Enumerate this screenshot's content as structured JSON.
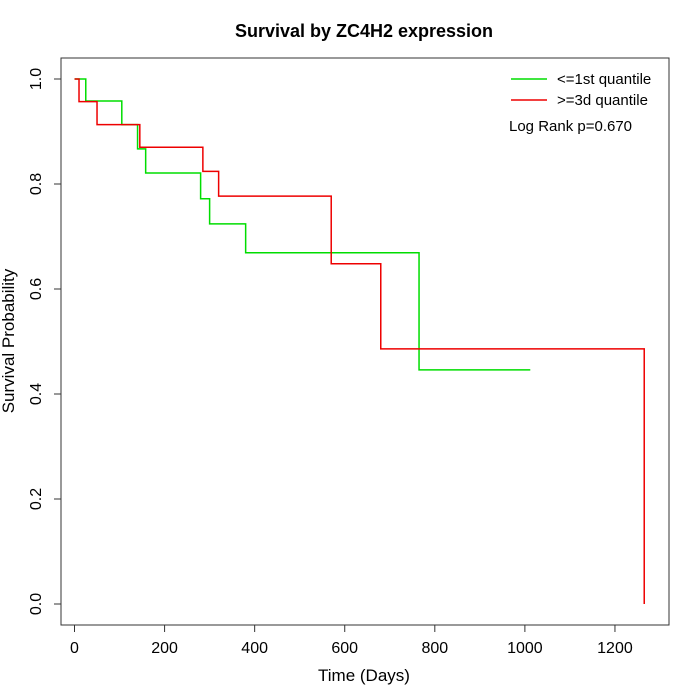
{
  "chart_data": {
    "type": "line",
    "subtype": "kaplan-meier-step",
    "title": "Survival by ZC4H2 expression",
    "xlabel": "Time (Days)",
    "ylabel": "Survival Probability",
    "xlim": [
      -30,
      1320
    ],
    "ylim": [
      -0.04,
      1.04
    ],
    "xticks": [
      0,
      200,
      400,
      600,
      800,
      1000,
      1200
    ],
    "yticks": [
      0.0,
      0.2,
      0.4,
      0.6,
      0.8,
      1.0
    ],
    "xtick_labels": [
      "0",
      "200",
      "400",
      "600",
      "800",
      "1000",
      "1200"
    ],
    "ytick_labels": [
      "0.0",
      "0.2",
      "0.4",
      "0.6",
      "0.8",
      "1.0"
    ],
    "grid": false,
    "legend_position": "top-right",
    "annotation": "Log Rank p=0.670",
    "series": [
      {
        "name": "<=1st quantile",
        "color": "#00dd00",
        "x": [
          0,
          25,
          105,
          140,
          158,
          280,
          300,
          380,
          765,
          1012
        ],
        "y": [
          1.0,
          0.958,
          0.913,
          0.867,
          0.821,
          0.772,
          0.724,
          0.669,
          0.446,
          0.446
        ]
      },
      {
        "name": ">=3d quantile",
        "color": "#ee0000",
        "x": [
          0,
          10,
          50,
          145,
          285,
          320,
          570,
          680,
          1265,
          1265
        ],
        "y": [
          1.0,
          0.957,
          0.913,
          0.87,
          0.824,
          0.777,
          0.648,
          0.486,
          0.486,
          0.0
        ]
      }
    ]
  }
}
